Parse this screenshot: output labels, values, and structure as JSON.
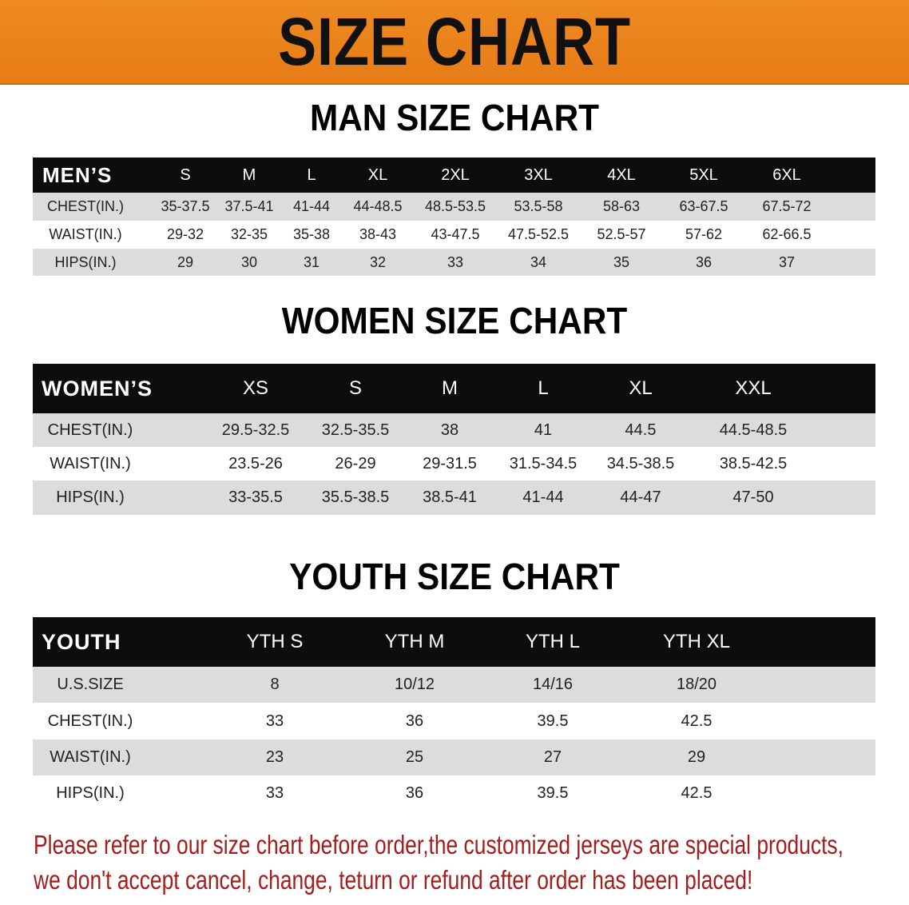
{
  "banner_title": "SIZE CHART",
  "men": {
    "title": "MAN SIZE CHART",
    "headers": [
      "MEN’S",
      "S",
      "M",
      "L",
      "XL",
      "2XL",
      "3XL",
      "4XL",
      "5XL",
      "6XL"
    ],
    "rows": [
      [
        "CHEST(IN.)",
        "35-37.5",
        "37.5-41",
        "41-44",
        "44-48.5",
        "48.5-53.5",
        "53.5-58",
        "58-63",
        "63-67.5",
        "67.5-72"
      ],
      [
        "WAIST(IN.)",
        "29-32",
        "32-35",
        "35-38",
        "38-43",
        "43-47.5",
        "47.5-52.5",
        "52.5-57",
        "57-62",
        "62-66.5"
      ],
      [
        "HIPS(IN.)",
        "29",
        "30",
        "31",
        "32",
        "33",
        "34",
        "35",
        "36",
        "37"
      ]
    ]
  },
  "women": {
    "title": "WOMEN SIZE CHART",
    "headers": [
      "WOMEN’S",
      "XS",
      "S",
      "M",
      "L",
      "XL",
      "XXL"
    ],
    "rows": [
      [
        "CHEST(IN.)",
        "29.5-32.5",
        "32.5-35.5",
        "38",
        "41",
        "44.5",
        "44.5-48.5"
      ],
      [
        "WAIST(IN.)",
        "23.5-26",
        "26-29",
        "29-31.5",
        "31.5-34.5",
        "34.5-38.5",
        "38.5-42.5"
      ],
      [
        "HIPS(IN.)",
        "33-35.5",
        "35.5-38.5",
        "38.5-41",
        "41-44",
        "44-47",
        "47-50"
      ]
    ]
  },
  "youth": {
    "title": "YOUTH SIZE CHART",
    "headers": [
      "YOUTH",
      "YTH S",
      "YTH M",
      "YTH L",
      "YTH XL"
    ],
    "rows": [
      [
        "U.S.SIZE",
        "8",
        "10/12",
        "14/16",
        "18/20"
      ],
      [
        "CHEST(IN.)",
        "33",
        "36",
        "39.5",
        "42.5"
      ],
      [
        "WAIST(IN.)",
        "23",
        "25",
        "27",
        "29"
      ],
      [
        "HIPS(IN.)",
        "33",
        "36",
        "39.5",
        "42.5"
      ]
    ]
  },
  "notice": {
    "line1": "Please refer to our size chart before order,the customized jerseys are special products,",
    "line2": "we don't accept cancel, change, teturn or refund after order has been placed!"
  },
  "colors": {
    "banner": "#e8801a",
    "header": "#0d0d0d",
    "stripe": "#dcdcdc",
    "notice": "#a31d1d"
  }
}
